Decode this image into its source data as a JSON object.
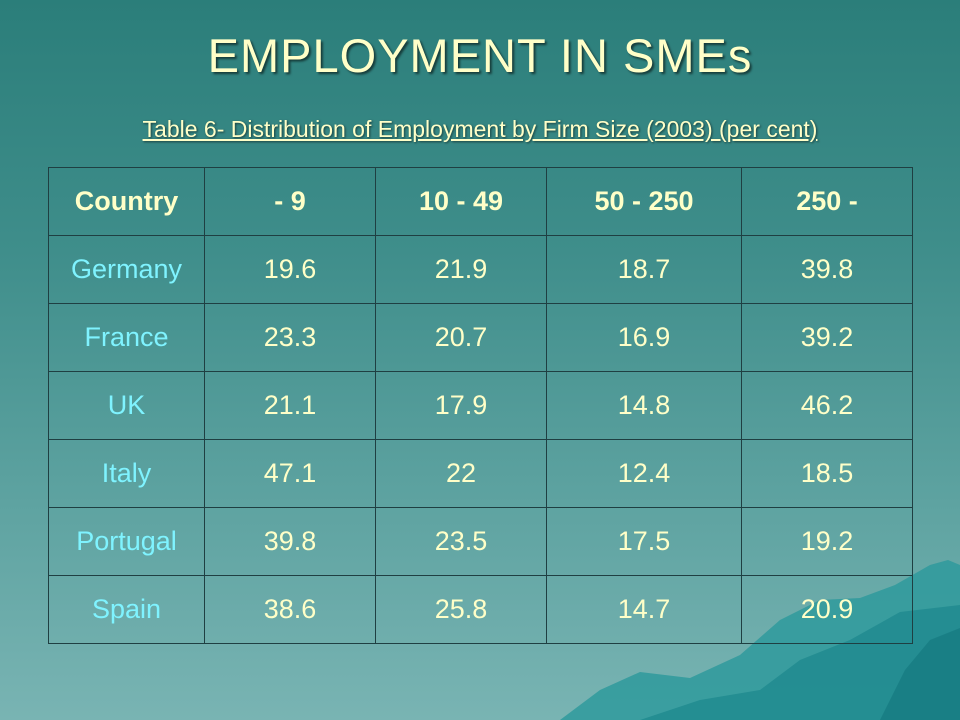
{
  "title": "EMPLOYMENT IN SMEs",
  "subtitle": "Table 6- Distribution of Employment by Firm Size (2003) (per cent)",
  "table": {
    "headers": [
      "Country",
      "- 9",
      "10 - 49",
      "50 - 250",
      "250 -"
    ],
    "rows": [
      {
        "country": "Germany",
        "values": [
          "19.6",
          "21.9",
          "18.7",
          "39.8"
        ]
      },
      {
        "country": "France",
        "values": [
          "23.3",
          "20.7",
          "16.9",
          "39.2"
        ]
      },
      {
        "country": "UK",
        "values": [
          "21.1",
          "17.9",
          "14.8",
          "46.2"
        ]
      },
      {
        "country": "Italy",
        "values": [
          "47.1",
          "22",
          "12.4",
          "18.5"
        ]
      },
      {
        "country": "Portugal",
        "values": [
          "39.8",
          "23.5",
          "17.5",
          "19.2"
        ]
      },
      {
        "country": "Spain",
        "values": [
          "38.6",
          "25.8",
          "14.7",
          "20.9"
        ]
      }
    ]
  },
  "colors": {
    "background_top": "#2b7e7a",
    "background_bottom": "#79b4b3",
    "heading_text": "#ffffc8",
    "country_text": "#7ff3ff",
    "grid_lines": "#1f3f42"
  }
}
